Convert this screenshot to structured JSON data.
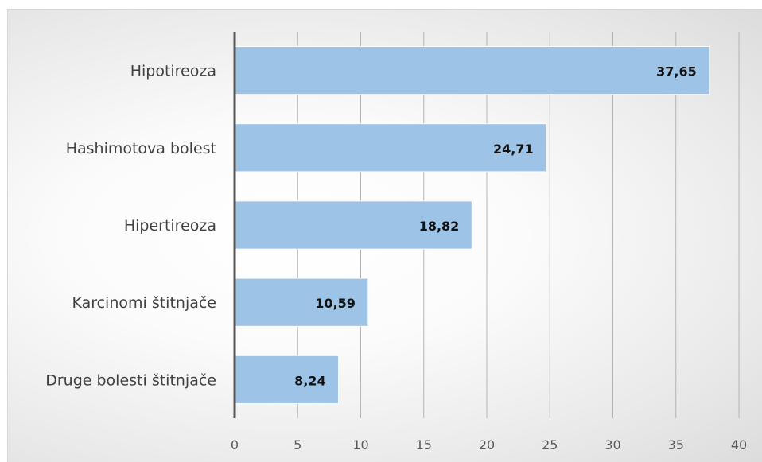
{
  "chart_data": {
    "type": "bar",
    "orientation": "horizontal",
    "categories": [
      "Hipotireoza",
      "Hashimotova bolest",
      "Hipertireoza",
      "Karcinomi štitnjače",
      "Druge bolesti štitnjače"
    ],
    "values": [
      37.65,
      24.71,
      18.82,
      10.59,
      8.24
    ],
    "value_labels": [
      "37,65",
      "24,71",
      "18,82",
      "10,59",
      "8,24"
    ],
    "xlim": [
      0,
      40
    ],
    "x_ticks": [
      0,
      5,
      10,
      15,
      20,
      25,
      30,
      35,
      40
    ],
    "x_tick_labels": [
      "0",
      "5",
      "10",
      "15",
      "20",
      "25",
      "30",
      "35",
      "40"
    ],
    "title": "",
    "xlabel": "",
    "ylabel": "",
    "grid": "vertical",
    "legend": "none",
    "colors": {
      "bar": "#9dc3e6",
      "bar_border": "#ffffff",
      "gridline": "#b4b4b4",
      "axis": "#595959"
    }
  }
}
